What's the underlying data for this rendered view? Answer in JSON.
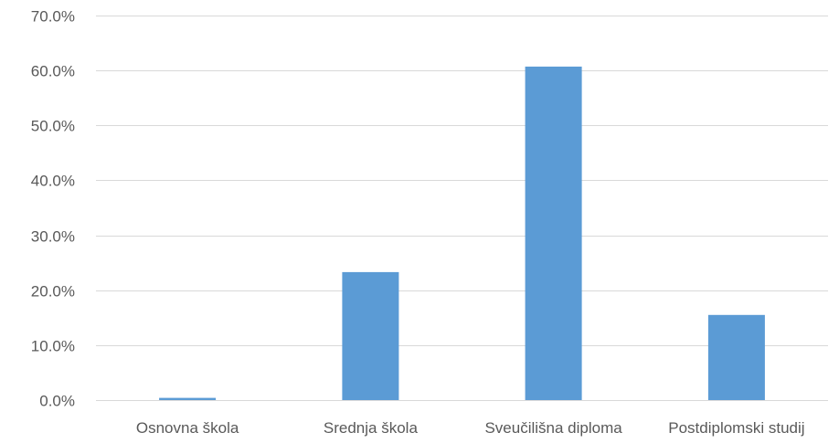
{
  "chart_data": {
    "type": "bar",
    "title": "",
    "xlabel": "",
    "ylabel": "",
    "categories": [
      "Osnovna škola",
      "Srednja škola",
      "Sveučilišna diploma",
      "Postdiplomski studij"
    ],
    "values": [
      0.4,
      23.3,
      60.7,
      15.5
    ],
    "ylim": [
      0,
      70
    ],
    "yticks": [
      0,
      10,
      20,
      30,
      40,
      50,
      60,
      70
    ],
    "ytick_labels": [
      "0.0%",
      "10.0%",
      "20.0%",
      "30.0%",
      "40.0%",
      "50.0%",
      "60.0%",
      "70.0%"
    ],
    "grid": true,
    "legend": "none",
    "colors": {
      "bar": "#5b9bd5",
      "grid": "#d9d9d9",
      "tick_text": "#595959"
    }
  }
}
